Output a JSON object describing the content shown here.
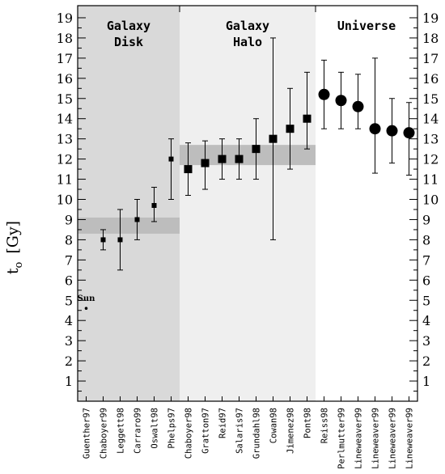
{
  "chart_data": {
    "type": "scatter",
    "ylabel_main": "t",
    "ylabel_sub": "o",
    "ylabel_unit": "[Gy]",
    "ylim": [
      0,
      19.6
    ],
    "yticks": [
      1,
      2,
      3,
      4,
      5,
      6,
      7,
      8,
      9,
      10,
      11,
      12,
      13,
      14,
      15,
      16,
      17,
      18,
      19
    ],
    "categories": [
      "Guenther97",
      "Chaboyer99",
      "Leggett98",
      "Carraro99",
      "Oswalt98",
      "Phelps97",
      "Chaboyer98",
      "Gratton97",
      "Reid97",
      "Salaris97",
      "Grundahl98",
      "Cowan98",
      "Jimenez98",
      "Pont98",
      "Reiss98",
      "Perlmutter99",
      "Lineweaver99",
      "Lineweaver99",
      "Lineweaver99",
      "Lineweaver99"
    ],
    "regions": [
      {
        "lines": [
          "Galaxy",
          "Disk"
        ],
        "from": 0,
        "to": 6,
        "color": "#d9d9d9",
        "band": [
          8.3,
          9.1
        ]
      },
      {
        "lines": [
          "Galaxy",
          "Halo"
        ],
        "from": 6,
        "to": 14,
        "color": "#efefef",
        "band": [
          11.7,
          12.7
        ]
      },
      {
        "lines": [
          "Universe"
        ],
        "from": 14,
        "to": 20,
        "color": "#ffffff"
      }
    ],
    "band_color": "#bdbdbd",
    "sun": {
      "label": "Sun",
      "index": 0,
      "value": 4.6
    },
    "points": [
      {
        "i": 1,
        "y": 8.0,
        "lo": 7.5,
        "hi": 8.5,
        "marker": "square-s"
      },
      {
        "i": 2,
        "y": 8.0,
        "lo": 6.5,
        "hi": 9.5,
        "marker": "square-s"
      },
      {
        "i": 3,
        "y": 9.0,
        "lo": 8.0,
        "hi": 10.0,
        "marker": "square-s"
      },
      {
        "i": 4,
        "y": 9.7,
        "lo": 8.9,
        "hi": 10.6,
        "marker": "square-s"
      },
      {
        "i": 5,
        "y": 12.0,
        "lo": 10.0,
        "hi": 13.0,
        "marker": "square-s"
      },
      {
        "i": 6,
        "y": 11.5,
        "lo": 10.2,
        "hi": 12.8,
        "marker": "square-l"
      },
      {
        "i": 7,
        "y": 11.8,
        "lo": 10.5,
        "hi": 12.9,
        "marker": "square-l"
      },
      {
        "i": 8,
        "y": 12.0,
        "lo": 11.0,
        "hi": 13.0,
        "marker": "square-l"
      },
      {
        "i": 9,
        "y": 12.0,
        "lo": 11.0,
        "hi": 13.0,
        "marker": "square-l"
      },
      {
        "i": 10,
        "y": 12.5,
        "lo": 11.0,
        "hi": 14.0,
        "marker": "square-l"
      },
      {
        "i": 11,
        "y": 13.0,
        "lo": 8.0,
        "hi": 18.0,
        "marker": "square-l"
      },
      {
        "i": 12,
        "y": 13.5,
        "lo": 11.5,
        "hi": 15.5,
        "marker": "square-l"
      },
      {
        "i": 13,
        "y": 14.0,
        "lo": 12.5,
        "hi": 16.3,
        "marker": "square-l"
      },
      {
        "i": 14,
        "y": 15.2,
        "lo": 13.5,
        "hi": 16.9,
        "marker": "circle"
      },
      {
        "i": 15,
        "y": 14.9,
        "lo": 13.5,
        "hi": 16.3,
        "marker": "circle"
      },
      {
        "i": 16,
        "y": 14.6,
        "lo": 13.5,
        "hi": 16.2,
        "marker": "circle"
      },
      {
        "i": 17,
        "y": 13.5,
        "lo": 11.3,
        "hi": 17.0,
        "marker": "circle"
      },
      {
        "i": 18,
        "y": 13.4,
        "lo": 11.8,
        "hi": 15.0,
        "marker": "circle"
      },
      {
        "i": 19,
        "y": 13.3,
        "lo": 11.2,
        "hi": 14.8,
        "marker": "circle"
      }
    ]
  }
}
